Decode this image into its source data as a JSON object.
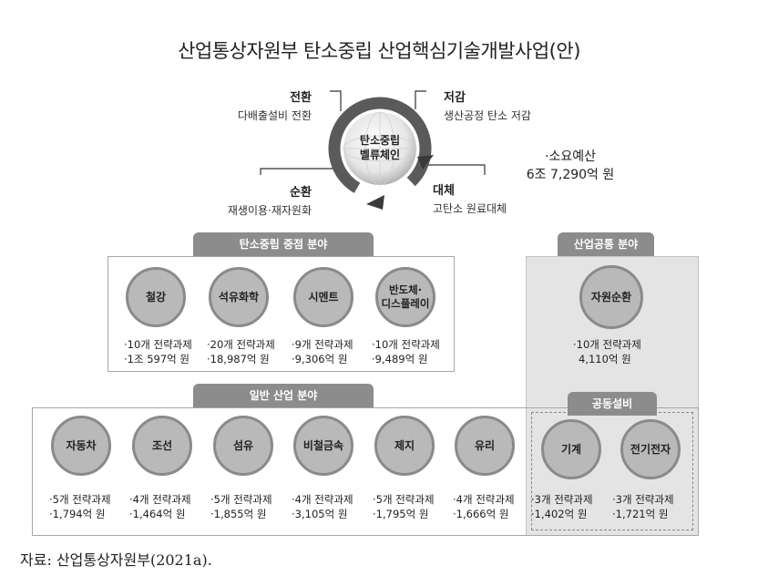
{
  "title": "산업통상자원부  탄소중립  산업핵심기술개발사업(안)",
  "center": {
    "line1": "탄소중립",
    "line2": "벨류체인"
  },
  "cycle": [
    {
      "key": "conversion",
      "head": "전환",
      "sub": "다배출설비 전환"
    },
    {
      "key": "reduction",
      "head": "저감",
      "sub": "생산공정 탄소 저감"
    },
    {
      "key": "circulation",
      "head": "순환",
      "sub": "재생이용·재자원화"
    },
    {
      "key": "substitution",
      "head": "대체",
      "sub": "고탄소 원료대체"
    }
  ],
  "budget": {
    "label": "·소요예산",
    "value": "6조 7,290억 원"
  },
  "core": {
    "tab": "탄소중립 중점 분야",
    "items": [
      {
        "name": "철강",
        "tasks": "·10개 전략과제",
        "amount": "·1조 597억 원"
      },
      {
        "name": "석유화학",
        "tasks": "·20개 전략과제",
        "amount": "·18,987억 원"
      },
      {
        "name": "시멘트",
        "tasks": "·9개 전략과제",
        "amount": "·9,306억 원"
      },
      {
        "name": "반도체·\n디스플레이",
        "tasks": "·10개 전략과제",
        "amount": "·9,489억 원"
      }
    ]
  },
  "common": {
    "tab": "산업공통 분야",
    "item": {
      "name": "자원순환",
      "tasks": "·10개 전략과제",
      "amount": "4,110억 원"
    }
  },
  "general": {
    "tab": "일반 산업 분야",
    "items": [
      {
        "name": "자동차",
        "tasks": "·5개 전략과제",
        "amount": "·1,794억 원"
      },
      {
        "name": "조선",
        "tasks": "·4개 전략과제",
        "amount": "·1,464억 원"
      },
      {
        "name": "섬유",
        "tasks": "·5개 전략과제",
        "amount": "·1,855억 원"
      },
      {
        "name": "비철금속",
        "tasks": "·4개 전략과제",
        "amount": "·3,105억 원"
      },
      {
        "name": "제지",
        "tasks": "·5개 전략과제",
        "amount": "·1,795억 원"
      },
      {
        "name": "유리",
        "tasks": "·4개 전략과제",
        "amount": "·1,666억 원"
      }
    ]
  },
  "shared": {
    "tab": "공동설비",
    "items": [
      {
        "name": "기계",
        "tasks": "·3개 전략과제",
        "amount": "·1,402억 원"
      },
      {
        "name": "전기전자",
        "tasks": "·3개 전략과제",
        "amount": "·1,721억 원"
      }
    ]
  },
  "source": "자료: 산업통상자원부(2021a)."
}
